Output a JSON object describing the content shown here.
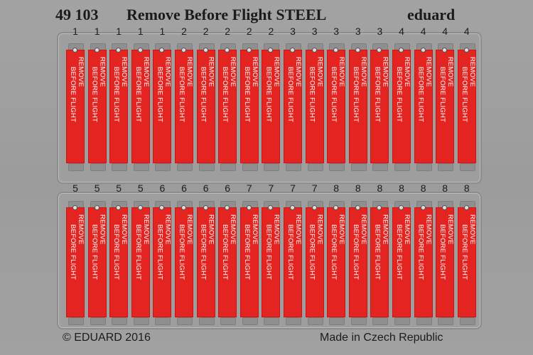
{
  "header": {
    "code": "49 103",
    "name": "Remove Before Flight STEEL",
    "brand": "eduard"
  },
  "tag_text": {
    "line1": "REMOVE",
    "line2": "BEFORE FLIGHT"
  },
  "row1": {
    "numbers": [
      "1",
      "1",
      "1",
      "1",
      "1",
      "2",
      "2",
      "2",
      "2",
      "2",
      "3",
      "3",
      "3",
      "3",
      "3",
      "4",
      "4",
      "4",
      "4"
    ]
  },
  "row2": {
    "numbers": [
      "5",
      "5",
      "5",
      "5",
      "6",
      "6",
      "6",
      "6",
      "7",
      "7",
      "7",
      "7",
      "8",
      "8",
      "8",
      "8",
      "8",
      "8",
      "8"
    ]
  },
  "footer": {
    "copyright": "© EDUARD 2016",
    "origin": "Made in Czech Republic"
  },
  "colors": {
    "tag_red": "#e32420",
    "sheet_grey": "#9e9e9e"
  }
}
